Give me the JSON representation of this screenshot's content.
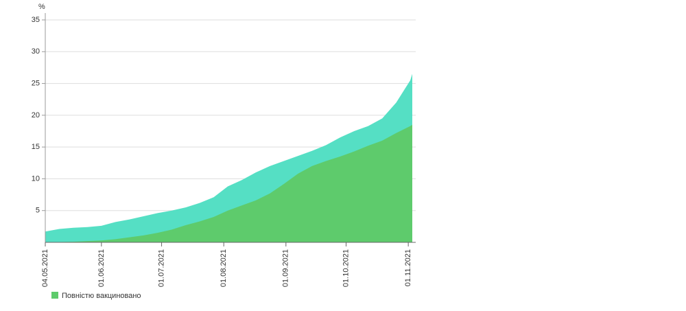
{
  "chart_data": {
    "type": "area",
    "y_label": "%",
    "x": [
      "04.05.2021",
      "11.05.2021",
      "18.05.2021",
      "25.05.2021",
      "01.06.2021",
      "08.06.2021",
      "15.06.2021",
      "22.06.2021",
      "29.06.2021",
      "06.07.2021",
      "13.07.2021",
      "20.07.2021",
      "27.07.2021",
      "03.08.2021",
      "10.08.2021",
      "17.08.2021",
      "24.08.2021",
      "31.08.2021",
      "07.09.2021",
      "14.09.2021",
      "21.09.2021",
      "28.09.2021",
      "05.10.2021",
      "12.10.2021",
      "19.10.2021",
      "26.10.2021",
      "02.11.2021",
      "03.11.2021"
    ],
    "series": [
      {
        "color": "#55dfc4",
        "values": [
          1.7,
          2.1,
          2.3,
          2.4,
          2.6,
          3.2,
          3.6,
          4.1,
          4.6,
          5.0,
          5.5,
          6.2,
          7.1,
          8.8,
          9.8,
          11.0,
          12.0,
          12.8,
          13.6,
          14.4,
          15.3,
          16.5,
          17.5,
          18.3,
          19.5,
          22.0,
          25.5,
          26.5
        ]
      },
      {
        "name": "Повністю вакциновано",
        "color": "#5ecb6c",
        "values": [
          0,
          0.05,
          0.1,
          0.2,
          0.3,
          0.5,
          0.8,
          1.1,
          1.5,
          2.0,
          2.7,
          3.3,
          4.0,
          5.0,
          5.8,
          6.6,
          7.7,
          9.2,
          10.8,
          12.0,
          12.8,
          13.5,
          14.3,
          15.2,
          16.0,
          17.2,
          18.3,
          18.5
        ]
      }
    ],
    "xlim": [
      "04.05.2021",
      "03.11.2021"
    ],
    "xticks": [
      "04.05.2021",
      "01.06.2021",
      "01.07.2021",
      "01.08.2021",
      "01.09.2021",
      "01.10.2021",
      "01.11.2021"
    ],
    "ylim": [
      0,
      35
    ],
    "yticks": [
      5,
      10,
      15,
      20,
      25,
      30,
      35
    ],
    "grid": true,
    "legend": "bottom-left"
  }
}
